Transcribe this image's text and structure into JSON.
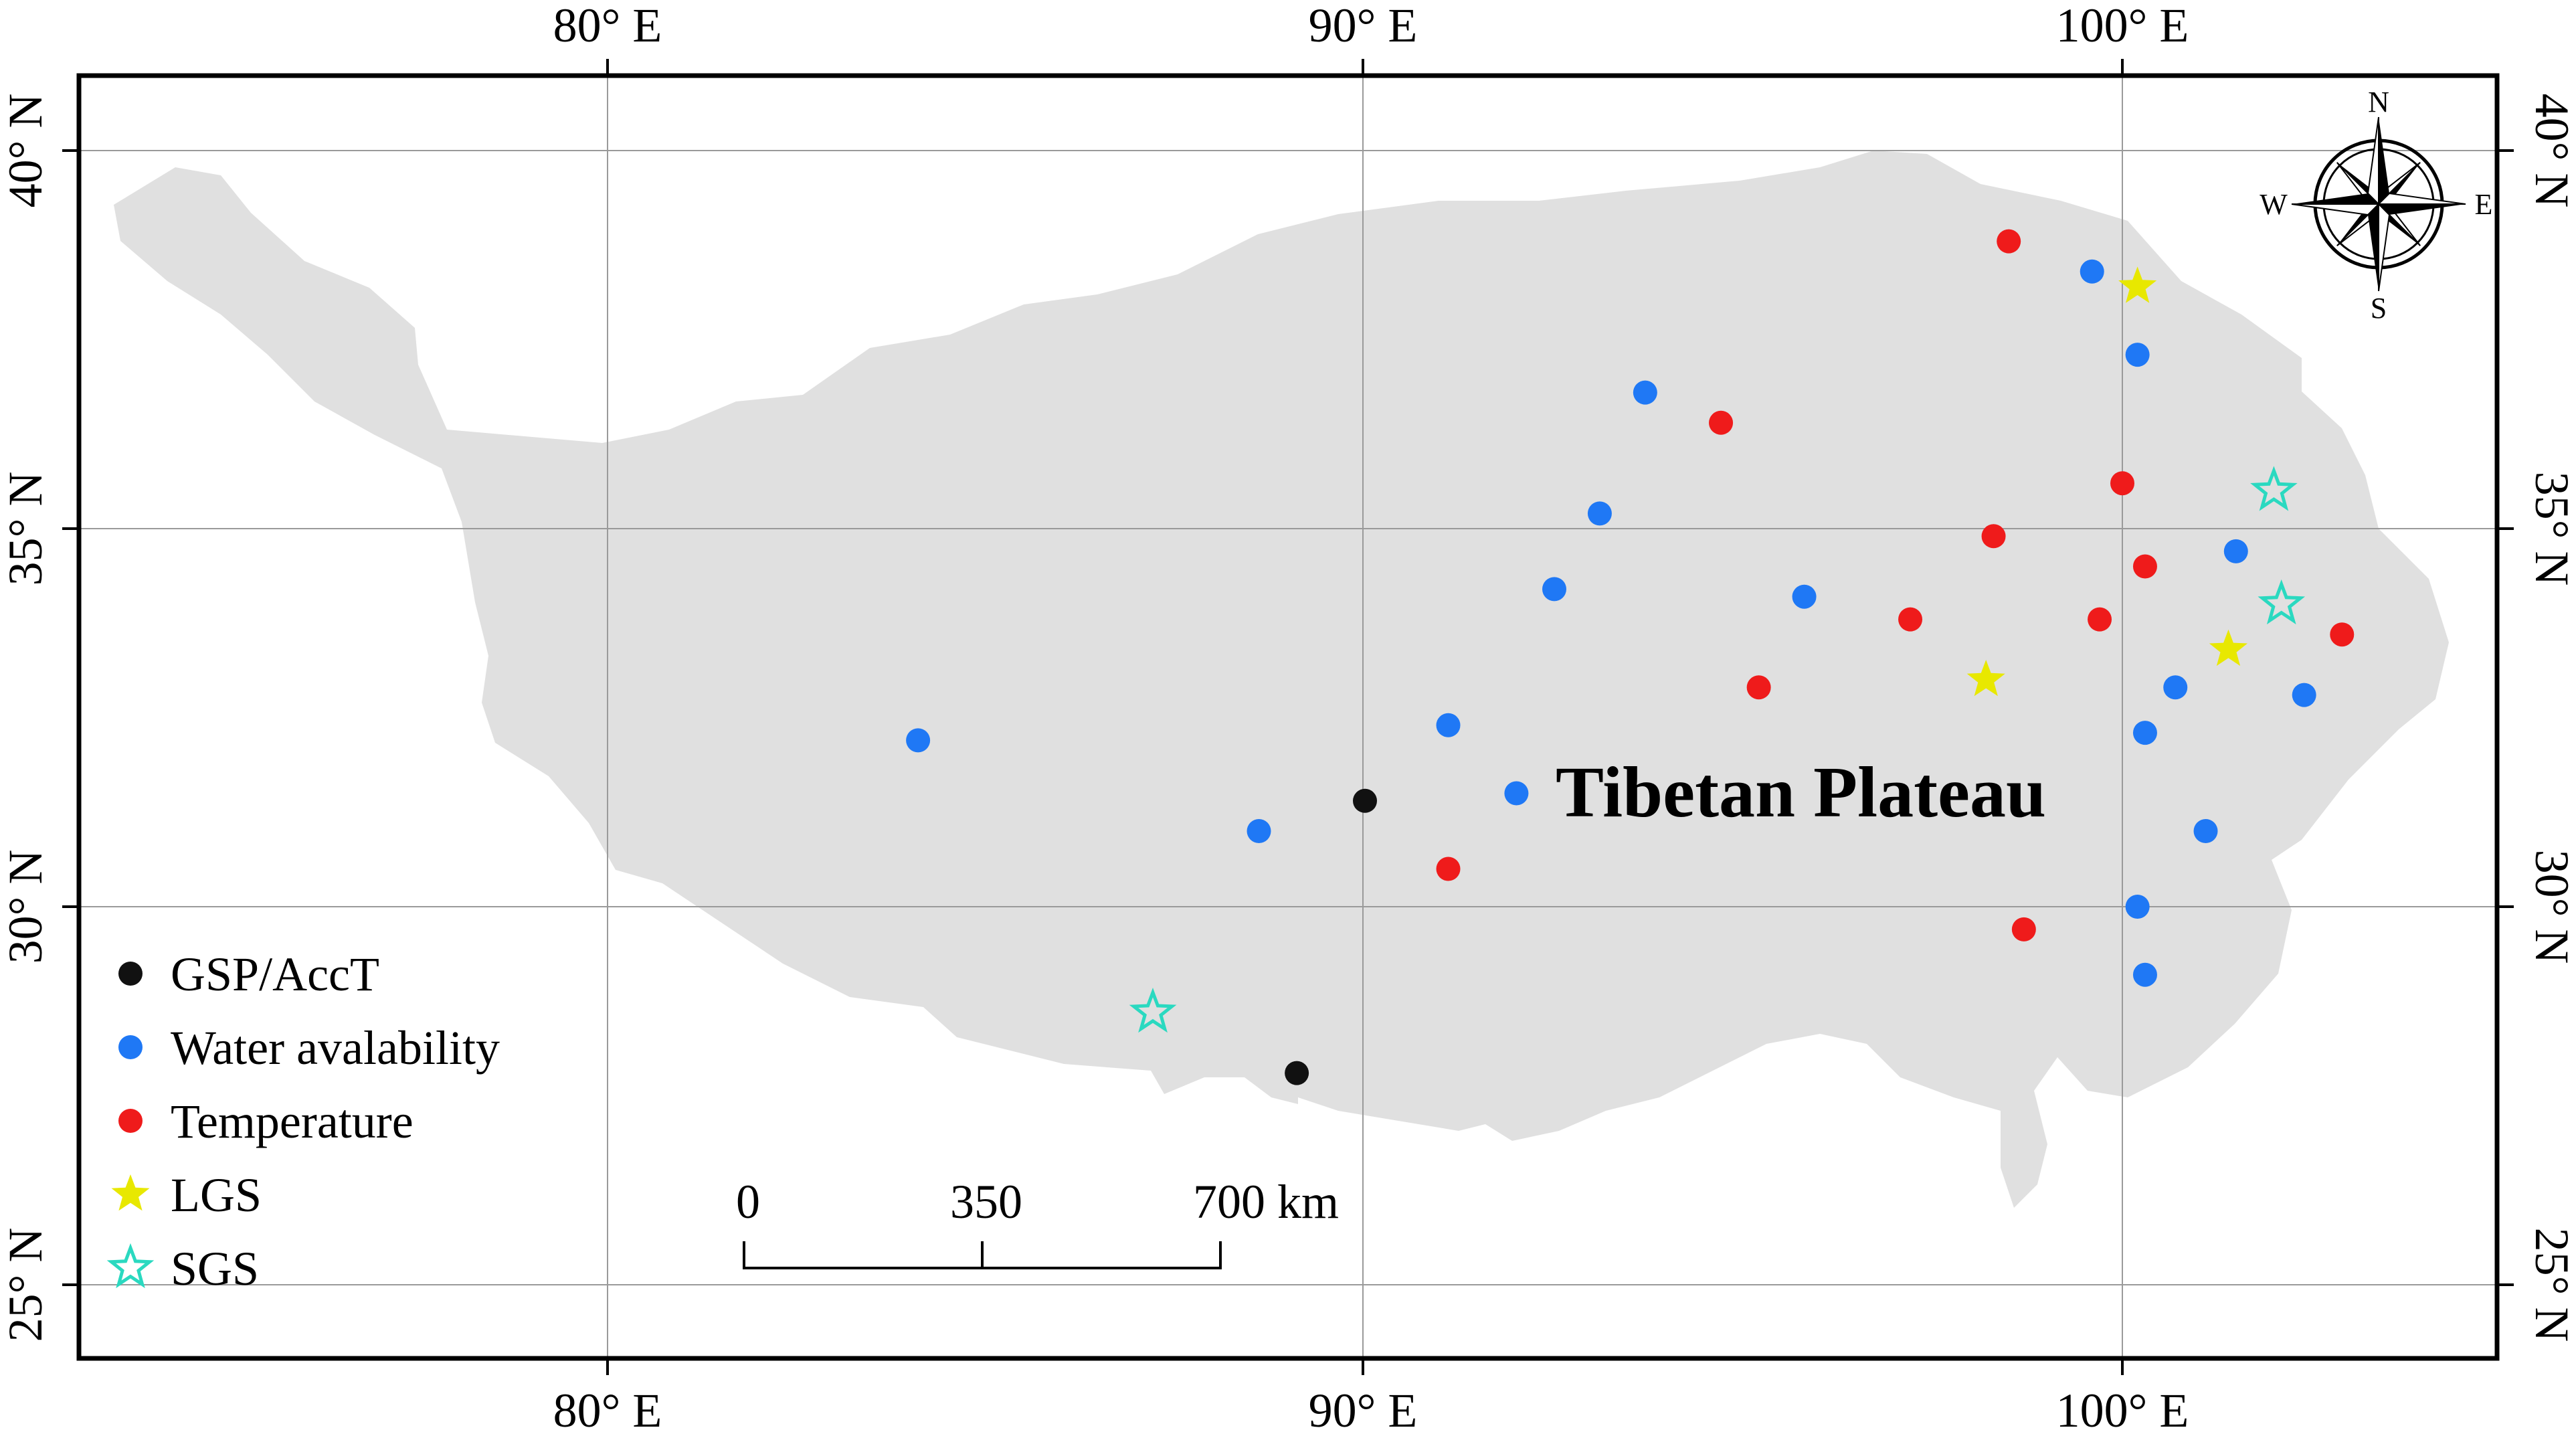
{
  "map": {
    "region_label": "Tibetan Plateau",
    "lon_labels": [
      "80° E",
      "90° E",
      "100° E"
    ],
    "lat_labels": [
      "40° N",
      "35° N",
      "30° N",
      "25° N"
    ],
    "compass": {
      "n": "N",
      "s": "S",
      "e": "E",
      "w": "W"
    },
    "scale_bar": {
      "labels": [
        "0",
        "350",
        "700 km"
      ]
    },
    "legend": [
      {
        "label": "GSP/AccT",
        "marker": "circle",
        "color": "#111111"
      },
      {
        "label": "Water avalability",
        "marker": "circle",
        "color": "#1f78f5"
      },
      {
        "label": "Temperature",
        "marker": "circle",
        "color": "#ef1b1b"
      },
      {
        "label": "LGS",
        "marker": "star-filled",
        "color": "#e8e800"
      },
      {
        "label": "SGS",
        "marker": "star-hollow",
        "color": "#2ad9c0"
      }
    ],
    "colors": {
      "land": "#e0e0e0",
      "grid": "#9a9a9a",
      "frame": "#000000"
    },
    "sites": {
      "gsp": [
        [
          90.0,
          31.4
        ],
        [
          89.1,
          27.8
        ]
      ],
      "water": [
        [
          99.6,
          38.4
        ],
        [
          100.2,
          37.3
        ],
        [
          93.7,
          36.8
        ],
        [
          93.1,
          35.2
        ],
        [
          101.5,
          34.7
        ],
        [
          92.5,
          34.2
        ],
        [
          95.8,
          34.1
        ],
        [
          100.7,
          32.9
        ],
        [
          102.4,
          32.8
        ],
        [
          91.1,
          32.4
        ],
        [
          84.1,
          32.2
        ],
        [
          100.3,
          32.3
        ],
        [
          92.0,
          31.5
        ],
        [
          88.6,
          31.0
        ],
        [
          101.1,
          31.0
        ],
        [
          100.2,
          30.0
        ],
        [
          100.3,
          29.1
        ]
      ],
      "temperature": [
        [
          98.5,
          38.8
        ],
        [
          94.7,
          36.4
        ],
        [
          100.0,
          35.6
        ],
        [
          98.3,
          34.9
        ],
        [
          100.3,
          34.5
        ],
        [
          97.2,
          33.8
        ],
        [
          99.7,
          33.8
        ],
        [
          102.9,
          33.6
        ],
        [
          95.2,
          32.9
        ],
        [
          91.1,
          30.5
        ],
        [
          98.7,
          29.7
        ]
      ],
      "lgs": [
        [
          100.2,
          38.2
        ],
        [
          98.2,
          33.0
        ],
        [
          101.4,
          33.4
        ]
      ],
      "sgs": [
        [
          102.0,
          35.5
        ],
        [
          102.1,
          34.0
        ],
        [
          87.2,
          28.6
        ]
      ]
    }
  }
}
